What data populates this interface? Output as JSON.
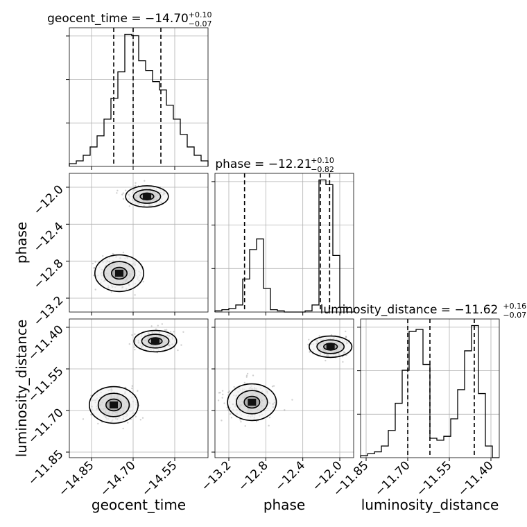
{
  "chart_data": {
    "type": "corner",
    "parameters": [
      "geocent_time",
      "phase",
      "luminosity_distance"
    ],
    "grid": true,
    "titles": [
      {
        "param": "geocent_time",
        "prefix": "geocent_time = −14.70",
        "plus": "+0.10",
        "minus": "−0.07"
      },
      {
        "param": "phase",
        "prefix": "phase = −12.21",
        "plus": "+0.10",
        "minus": "−0.82"
      },
      {
        "param": "luminosity_distance",
        "prefix": "luminosity_distance = −11.62",
        "plus": "+0.16",
        "minus": "−0.07"
      }
    ],
    "axes": {
      "geocent_time": {
        "range": [
          -14.93,
          -14.43
        ],
        "ticks": [
          -14.85,
          -14.7,
          -14.55
        ],
        "tick_labels": [
          "−14.85",
          "−14.70",
          "−14.55"
        ]
      },
      "phase": {
        "range": [
          -13.35,
          -11.85
        ],
        "ticks": [
          -13.2,
          -12.8,
          -12.4,
          -12.0
        ],
        "tick_labels": [
          "−13.2",
          "−12.8",
          "−12.4",
          "−12.0"
        ]
      },
      "luminosity_distance": {
        "range": [
          -11.87,
          -11.37
        ],
        "ticks": [
          -11.85,
          -11.7,
          -11.55,
          -11.4
        ],
        "tick_labels": [
          "−11.85",
          "−11.70",
          "−11.55",
          "−11.40"
        ]
      }
    },
    "histograms": {
      "geocent_time": {
        "bin_edges": [
          -14.93,
          -14.905,
          -14.88,
          -14.855,
          -14.83,
          -14.805,
          -14.78,
          -14.755,
          -14.73,
          -14.705,
          -14.68,
          -14.655,
          -14.63,
          -14.605,
          -14.58,
          -14.555,
          -14.53,
          -14.505,
          -14.48,
          -14.455,
          -14.43
        ],
        "counts": [
          2,
          4,
          8,
          14,
          22,
          34,
          49,
          68,
          95,
          94,
          76,
          69,
          61,
          55,
          44,
          34,
          23,
          14,
          8,
          4
        ],
        "quantile_lines": [
          -14.77,
          -14.7,
          -14.6
        ]
      },
      "phase": {
        "bin_edges": [
          -13.35,
          -13.275,
          -13.2,
          -13.125,
          -13.05,
          -12.975,
          -12.9,
          -12.825,
          -12.75,
          -12.675,
          -12.6,
          -12.525,
          -12.45,
          -12.375,
          -12.3,
          -12.225,
          -12.15,
          -12.075,
          -12.0,
          -11.925,
          -11.85
        ],
        "counts": [
          1,
          2,
          3,
          6,
          28,
          53,
          62,
          20,
          2,
          1,
          0,
          0,
          0,
          1,
          6,
          112,
          108,
          48,
          4,
          0
        ],
        "quantile_lines": [
          -13.03,
          -12.21,
          -12.11
        ]
      },
      "luminosity_distance": {
        "bin_edges": [
          -11.87,
          -11.845,
          -11.82,
          -11.795,
          -11.77,
          -11.745,
          -11.72,
          -11.695,
          -11.67,
          -11.645,
          -11.62,
          -11.595,
          -11.57,
          -11.545,
          -11.52,
          -11.495,
          -11.47,
          -11.445,
          -11.42,
          -11.395,
          -11.37
        ],
        "counts": [
          1,
          2,
          3,
          6,
          14,
          28,
          45,
          65,
          66,
          48,
          10,
          9,
          11,
          20,
          35,
          55,
          68,
          33,
          6,
          0
        ],
        "quantile_lines": [
          -11.7,
          -11.62,
          -11.46
        ]
      }
    },
    "modes_2d": [
      {
        "x": "geocent_time",
        "y": "phase",
        "peaks": [
          [
            -14.65,
            -12.1
          ],
          [
            -14.75,
            -12.93
          ]
        ]
      },
      {
        "x": "geocent_time",
        "y": "luminosity_distance",
        "peaks": [
          [
            -14.62,
            -11.45
          ],
          [
            -14.77,
            -11.68
          ]
        ]
      },
      {
        "x": "phase",
        "y": "luminosity_distance",
        "peaks": [
          [
            -12.1,
            -11.47
          ],
          [
            -12.95,
            -11.67
          ]
        ]
      }
    ]
  }
}
